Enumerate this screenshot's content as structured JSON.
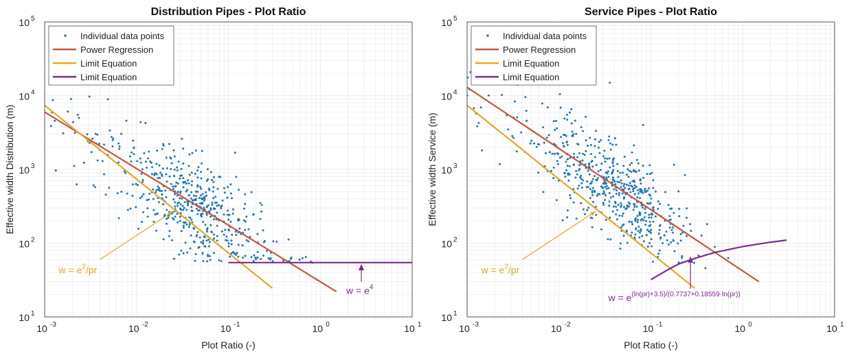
{
  "colors": {
    "points": "#1f77b4",
    "power": "#c8553d",
    "limit": "#e3a923",
    "limit2": "#7b2a8c",
    "grid": "#e6e6e6",
    "axis": "#444444"
  },
  "chart_data": [
    {
      "type": "scatter",
      "title": "Distribution Pipes - Plot Ratio",
      "xlabel": "Plot Ratio (-)",
      "ylabel": "Effective width Distribution (m)",
      "xscale": "log",
      "yscale": "log",
      "xlim": [
        0.001,
        10
      ],
      "ylim": [
        10,
        100000
      ],
      "grid": true,
      "legend_position": "top-left",
      "x_ticks": [
        "10",
        "10",
        "10",
        "10",
        "10"
      ],
      "x_tick_exps": [
        "-3",
        "-2",
        "-1",
        "0",
        "1"
      ],
      "y_ticks": [
        "10",
        "10",
        "10",
        "10",
        "10"
      ],
      "y_tick_exps": [
        "1",
        "2",
        "3",
        "4",
        "5"
      ],
      "legend": [
        "Individual data points",
        "Power Regression",
        "Limit Equation",
        "Limit Equation"
      ],
      "annotations": [
        {
          "base": "w = e",
          "sup": "2",
          "tail": "/pr"
        },
        {
          "base": "w = e",
          "sup": "4",
          "tail": ""
        }
      ],
      "series": [
        {
          "name": "Power Regression",
          "x": [
            0.001,
            1.5
          ],
          "y": [
            6000,
            22
          ]
        },
        {
          "name": "Limit Equation",
          "x": [
            0.001,
            0.3
          ],
          "y": [
            7389,
            24.6
          ]
        },
        {
          "name": "Limit Equation",
          "x": [
            0.1,
            10
          ],
          "y": [
            54.6,
            54.6
          ]
        }
      ],
      "scatter_seed": 17,
      "scatter_count": 540
    },
    {
      "type": "scatter",
      "title": "Service Pipes - Plot Ratio",
      "xlabel": "Plot Ratio (-)",
      "ylabel": "Effective width Service (m)",
      "xscale": "log",
      "yscale": "log",
      "xlim": [
        0.001,
        10
      ],
      "ylim": [
        10,
        100000
      ],
      "grid": true,
      "legend_position": "top-left",
      "x_ticks": [
        "10",
        "10",
        "10",
        "10",
        "10"
      ],
      "x_tick_exps": [
        "-3",
        "-2",
        "-1",
        "0",
        "1"
      ],
      "y_ticks": [
        "10",
        "10",
        "10",
        "10",
        "10"
      ],
      "y_tick_exps": [
        "1",
        "2",
        "3",
        "4",
        "5"
      ],
      "legend": [
        "Individual data points",
        "Power Regression",
        "Limit Equation",
        "Limit Equation"
      ],
      "annotations": [
        {
          "base": "w = e",
          "sup": "2",
          "tail": "/pr"
        },
        {
          "base": "w = e",
          "sup": "(ln(pr)+3.5)/(0.7737+0.18559·ln(pr))",
          "tail": ""
        }
      ],
      "series": [
        {
          "name": "Power Regression",
          "x": [
            0.001,
            1.5
          ],
          "y": [
            13000,
            30
          ]
        },
        {
          "name": "Limit Equation",
          "x": [
            0.001,
            0.3
          ],
          "y": [
            7389,
            24.6
          ]
        },
        {
          "name": "Limit Equation",
          "x": [
            0.1,
            0.15,
            0.2,
            0.3,
            0.5,
            1.0,
            2.0,
            3.0
          ],
          "y": [
            32,
            43,
            52,
            62,
            75,
            90,
            103,
            110
          ]
        }
      ],
      "scatter_seed": 29,
      "scatter_count": 560
    }
  ]
}
